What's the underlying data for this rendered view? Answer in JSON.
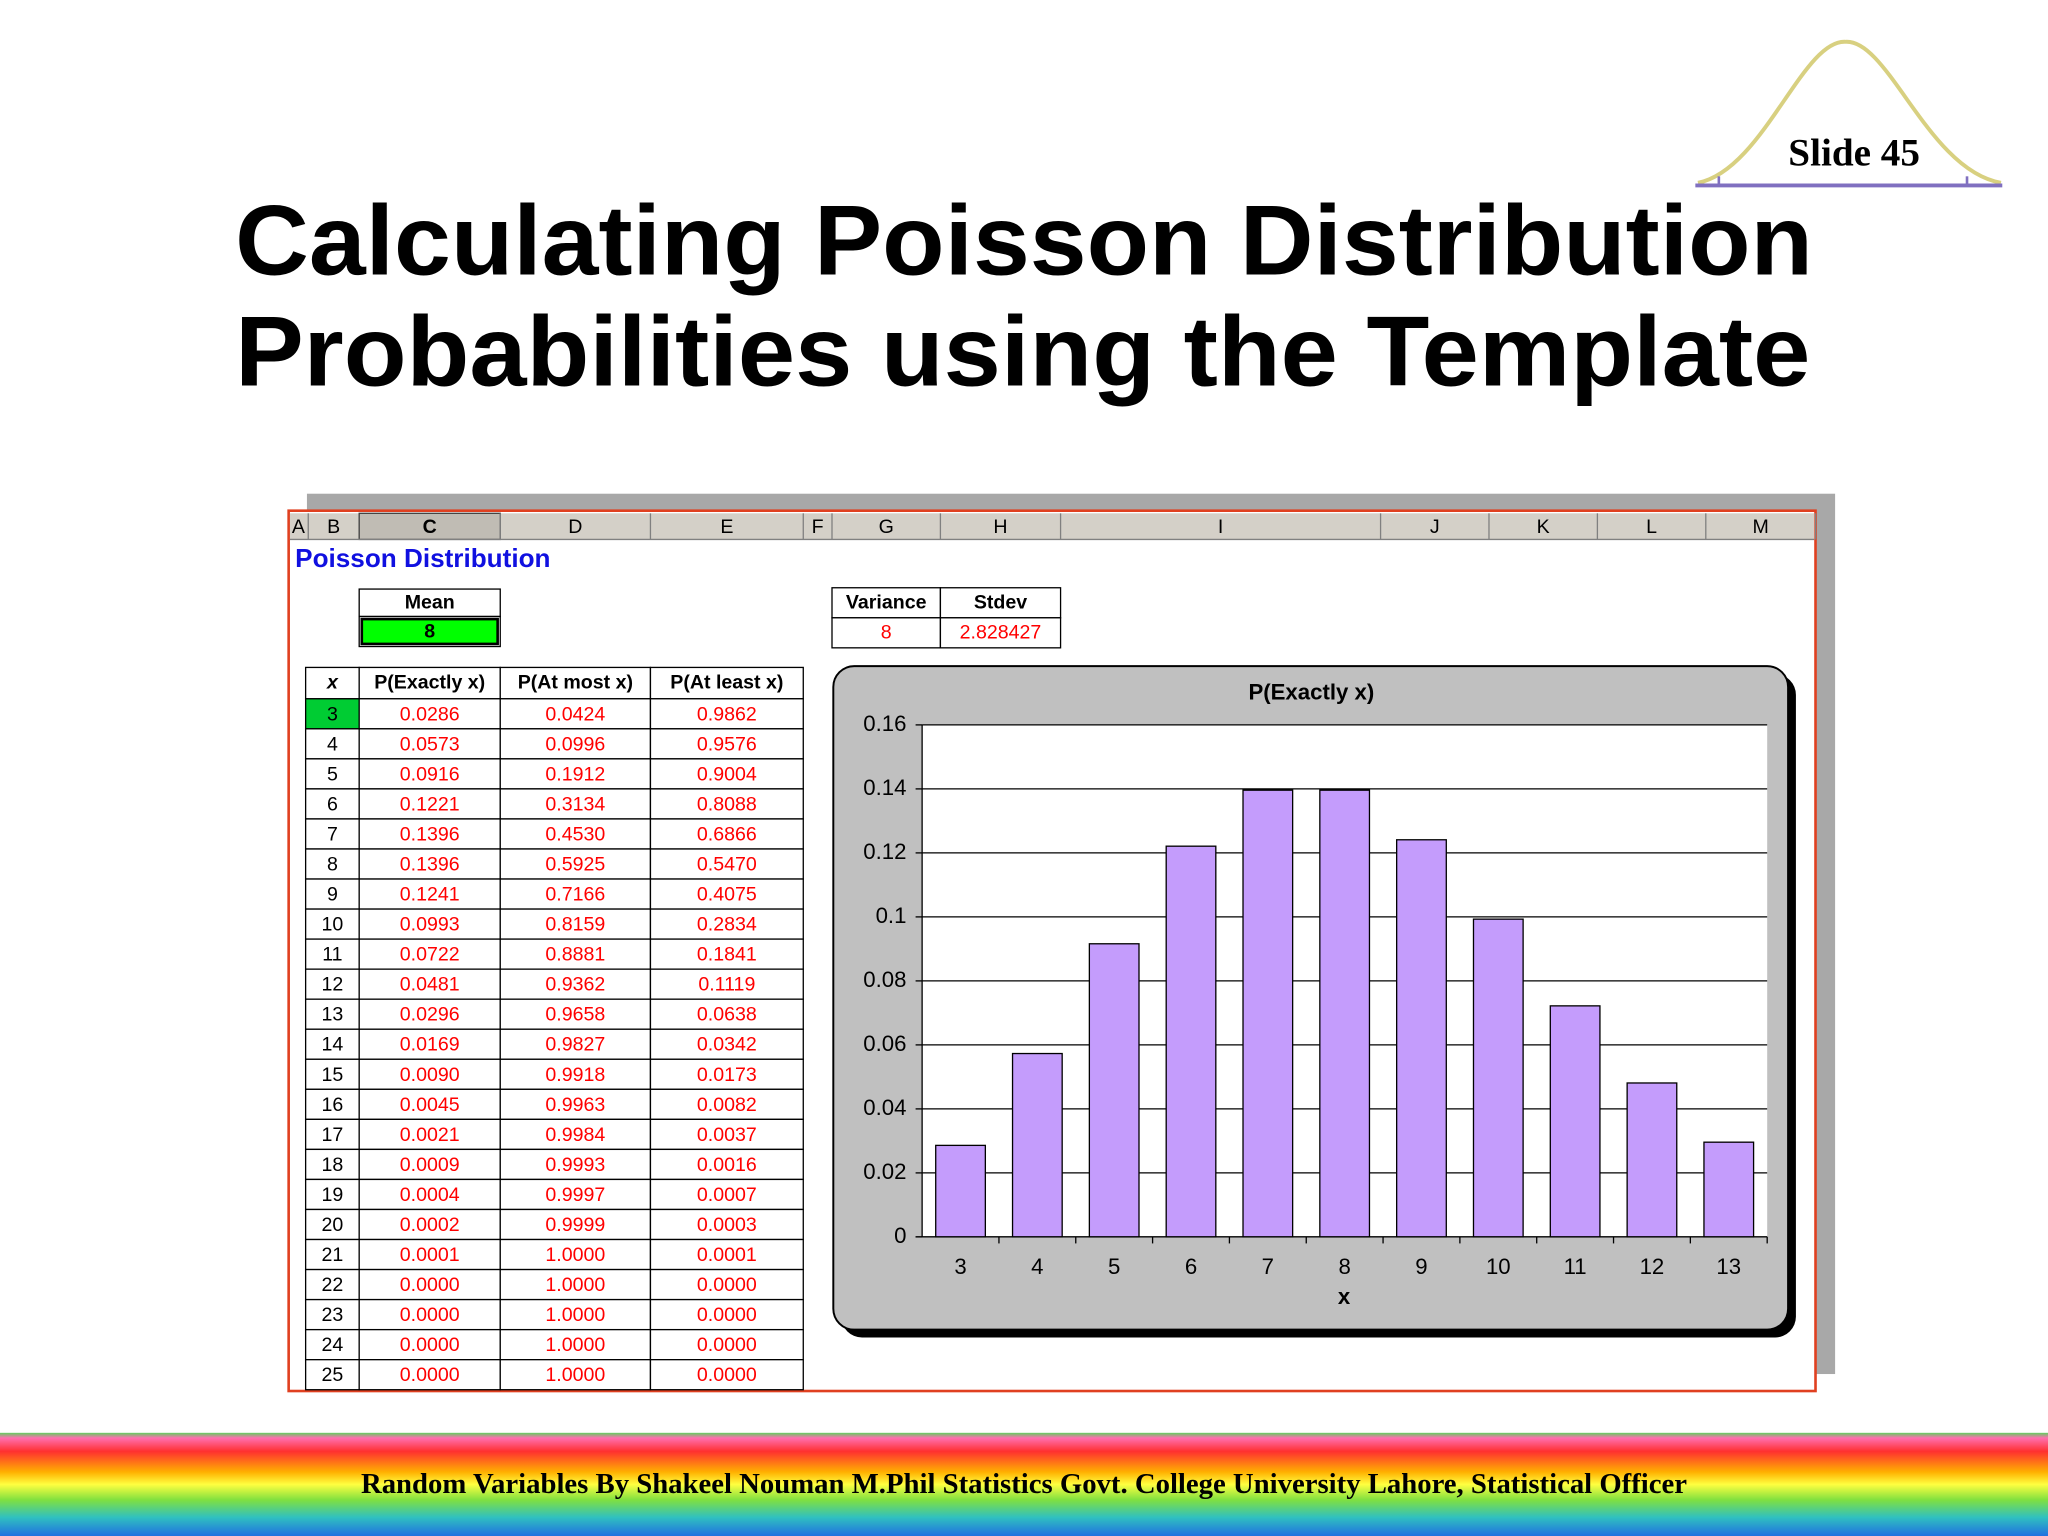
{
  "slide": "Slide 45",
  "title": [
    "Calculating Poisson Distribution",
    "Probabilities using the Template"
  ],
  "sheet": {
    "columns": [
      "A",
      "B",
      "C",
      "D",
      "E",
      "F",
      "G",
      "H",
      "I",
      "J",
      "K",
      "L",
      "M"
    ],
    "heading": "Poisson Distribution",
    "mean_label": "Mean",
    "mean": "8",
    "variance_label": "Variance",
    "stdev_label": "Stdev",
    "variance": "8",
    "stdev": "2.828427",
    "table": {
      "header": [
        "x",
        "P(Exactly x)",
        "P(At most x)",
        "P(At least x)"
      ],
      "rows": [
        [
          "3",
          "0.0286",
          "0.0424",
          "0.9862"
        ],
        [
          "4",
          "0.0573",
          "0.0996",
          "0.9576"
        ],
        [
          "5",
          "0.0916",
          "0.1912",
          "0.9004"
        ],
        [
          "6",
          "0.1221",
          "0.3134",
          "0.8088"
        ],
        [
          "7",
          "0.1396",
          "0.4530",
          "0.6866"
        ],
        [
          "8",
          "0.1396",
          "0.5925",
          "0.5470"
        ],
        [
          "9",
          "0.1241",
          "0.7166",
          "0.4075"
        ],
        [
          "10",
          "0.0993",
          "0.8159",
          "0.2834"
        ],
        [
          "11",
          "0.0722",
          "0.8881",
          "0.1841"
        ],
        [
          "12",
          "0.0481",
          "0.9362",
          "0.1119"
        ],
        [
          "13",
          "0.0296",
          "0.9658",
          "0.0638"
        ],
        [
          "14",
          "0.0169",
          "0.9827",
          "0.0342"
        ],
        [
          "15",
          "0.0090",
          "0.9918",
          "0.0173"
        ],
        [
          "16",
          "0.0045",
          "0.9963",
          "0.0082"
        ],
        [
          "17",
          "0.0021",
          "0.9984",
          "0.0037"
        ],
        [
          "18",
          "0.0009",
          "0.9993",
          "0.0016"
        ],
        [
          "19",
          "0.0004",
          "0.9997",
          "0.0007"
        ],
        [
          "20",
          "0.0002",
          "0.9999",
          "0.0003"
        ],
        [
          "21",
          "0.0001",
          "1.0000",
          "0.0001"
        ],
        [
          "22",
          "0.0000",
          "1.0000",
          "0.0000"
        ],
        [
          "23",
          "0.0000",
          "1.0000",
          "0.0000"
        ],
        [
          "24",
          "0.0000",
          "1.0000",
          "0.0000"
        ],
        [
          "25",
          "0.0000",
          "1.0000",
          "0.0000"
        ]
      ]
    }
  },
  "chart_data": {
    "type": "bar",
    "title": "P(Exactly x)",
    "x_label": "x",
    "categories": [
      "3",
      "4",
      "5",
      "6",
      "7",
      "8",
      "9",
      "10",
      "11",
      "12",
      "13"
    ],
    "values": [
      0.0286,
      0.0573,
      0.0916,
      0.1221,
      0.1396,
      0.1396,
      0.1241,
      0.0993,
      0.0722,
      0.0481,
      0.0296
    ],
    "color": "#c49cfc",
    "ylim": [
      0,
      0.16
    ],
    "yticks": [
      0,
      0.02,
      0.04,
      0.06,
      0.08,
      0.1,
      0.12,
      0.14,
      0.16
    ],
    "grid": true
  },
  "footer": "Random Variables  By Shakeel Nouman M.Phil Statistics Govt. College University Lahore, Statistical Officer"
}
